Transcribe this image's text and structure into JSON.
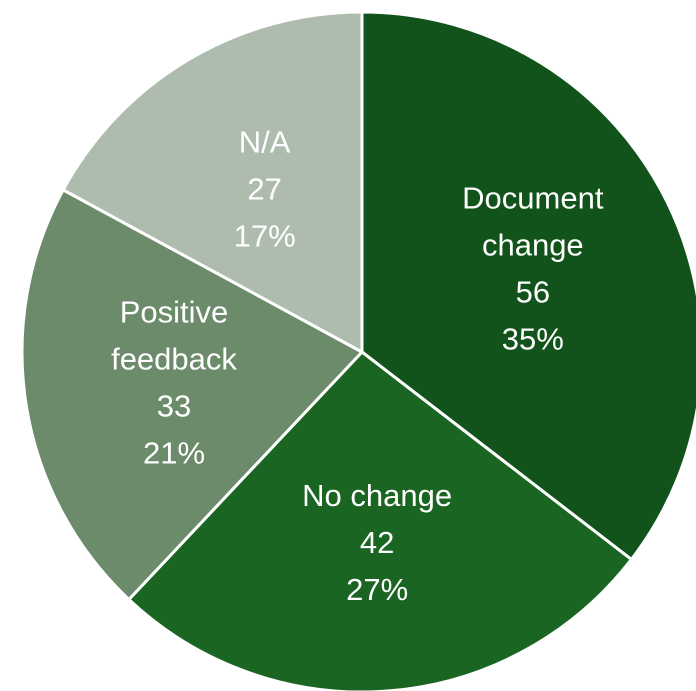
{
  "chart_data": {
    "type": "pie",
    "title": "",
    "slices": [
      {
        "label": [
          "Document",
          "change"
        ],
        "value": 56,
        "percent": "35%",
        "color": "#12521b"
      },
      {
        "label": [
          "No change"
        ],
        "value": 42,
        "percent": "27%",
        "color": "#1b6523"
      },
      {
        "label": [
          "Positive",
          "feedback"
        ],
        "value": 33,
        "percent": "21%",
        "color": "#6b8b6b"
      },
      {
        "label": [
          "N/A"
        ],
        "value": 27,
        "percent": "17%",
        "color": "#aebcae"
      }
    ],
    "start_angle": "12 o'clock",
    "direction": "clockwise",
    "label_color": "#ffffff"
  }
}
